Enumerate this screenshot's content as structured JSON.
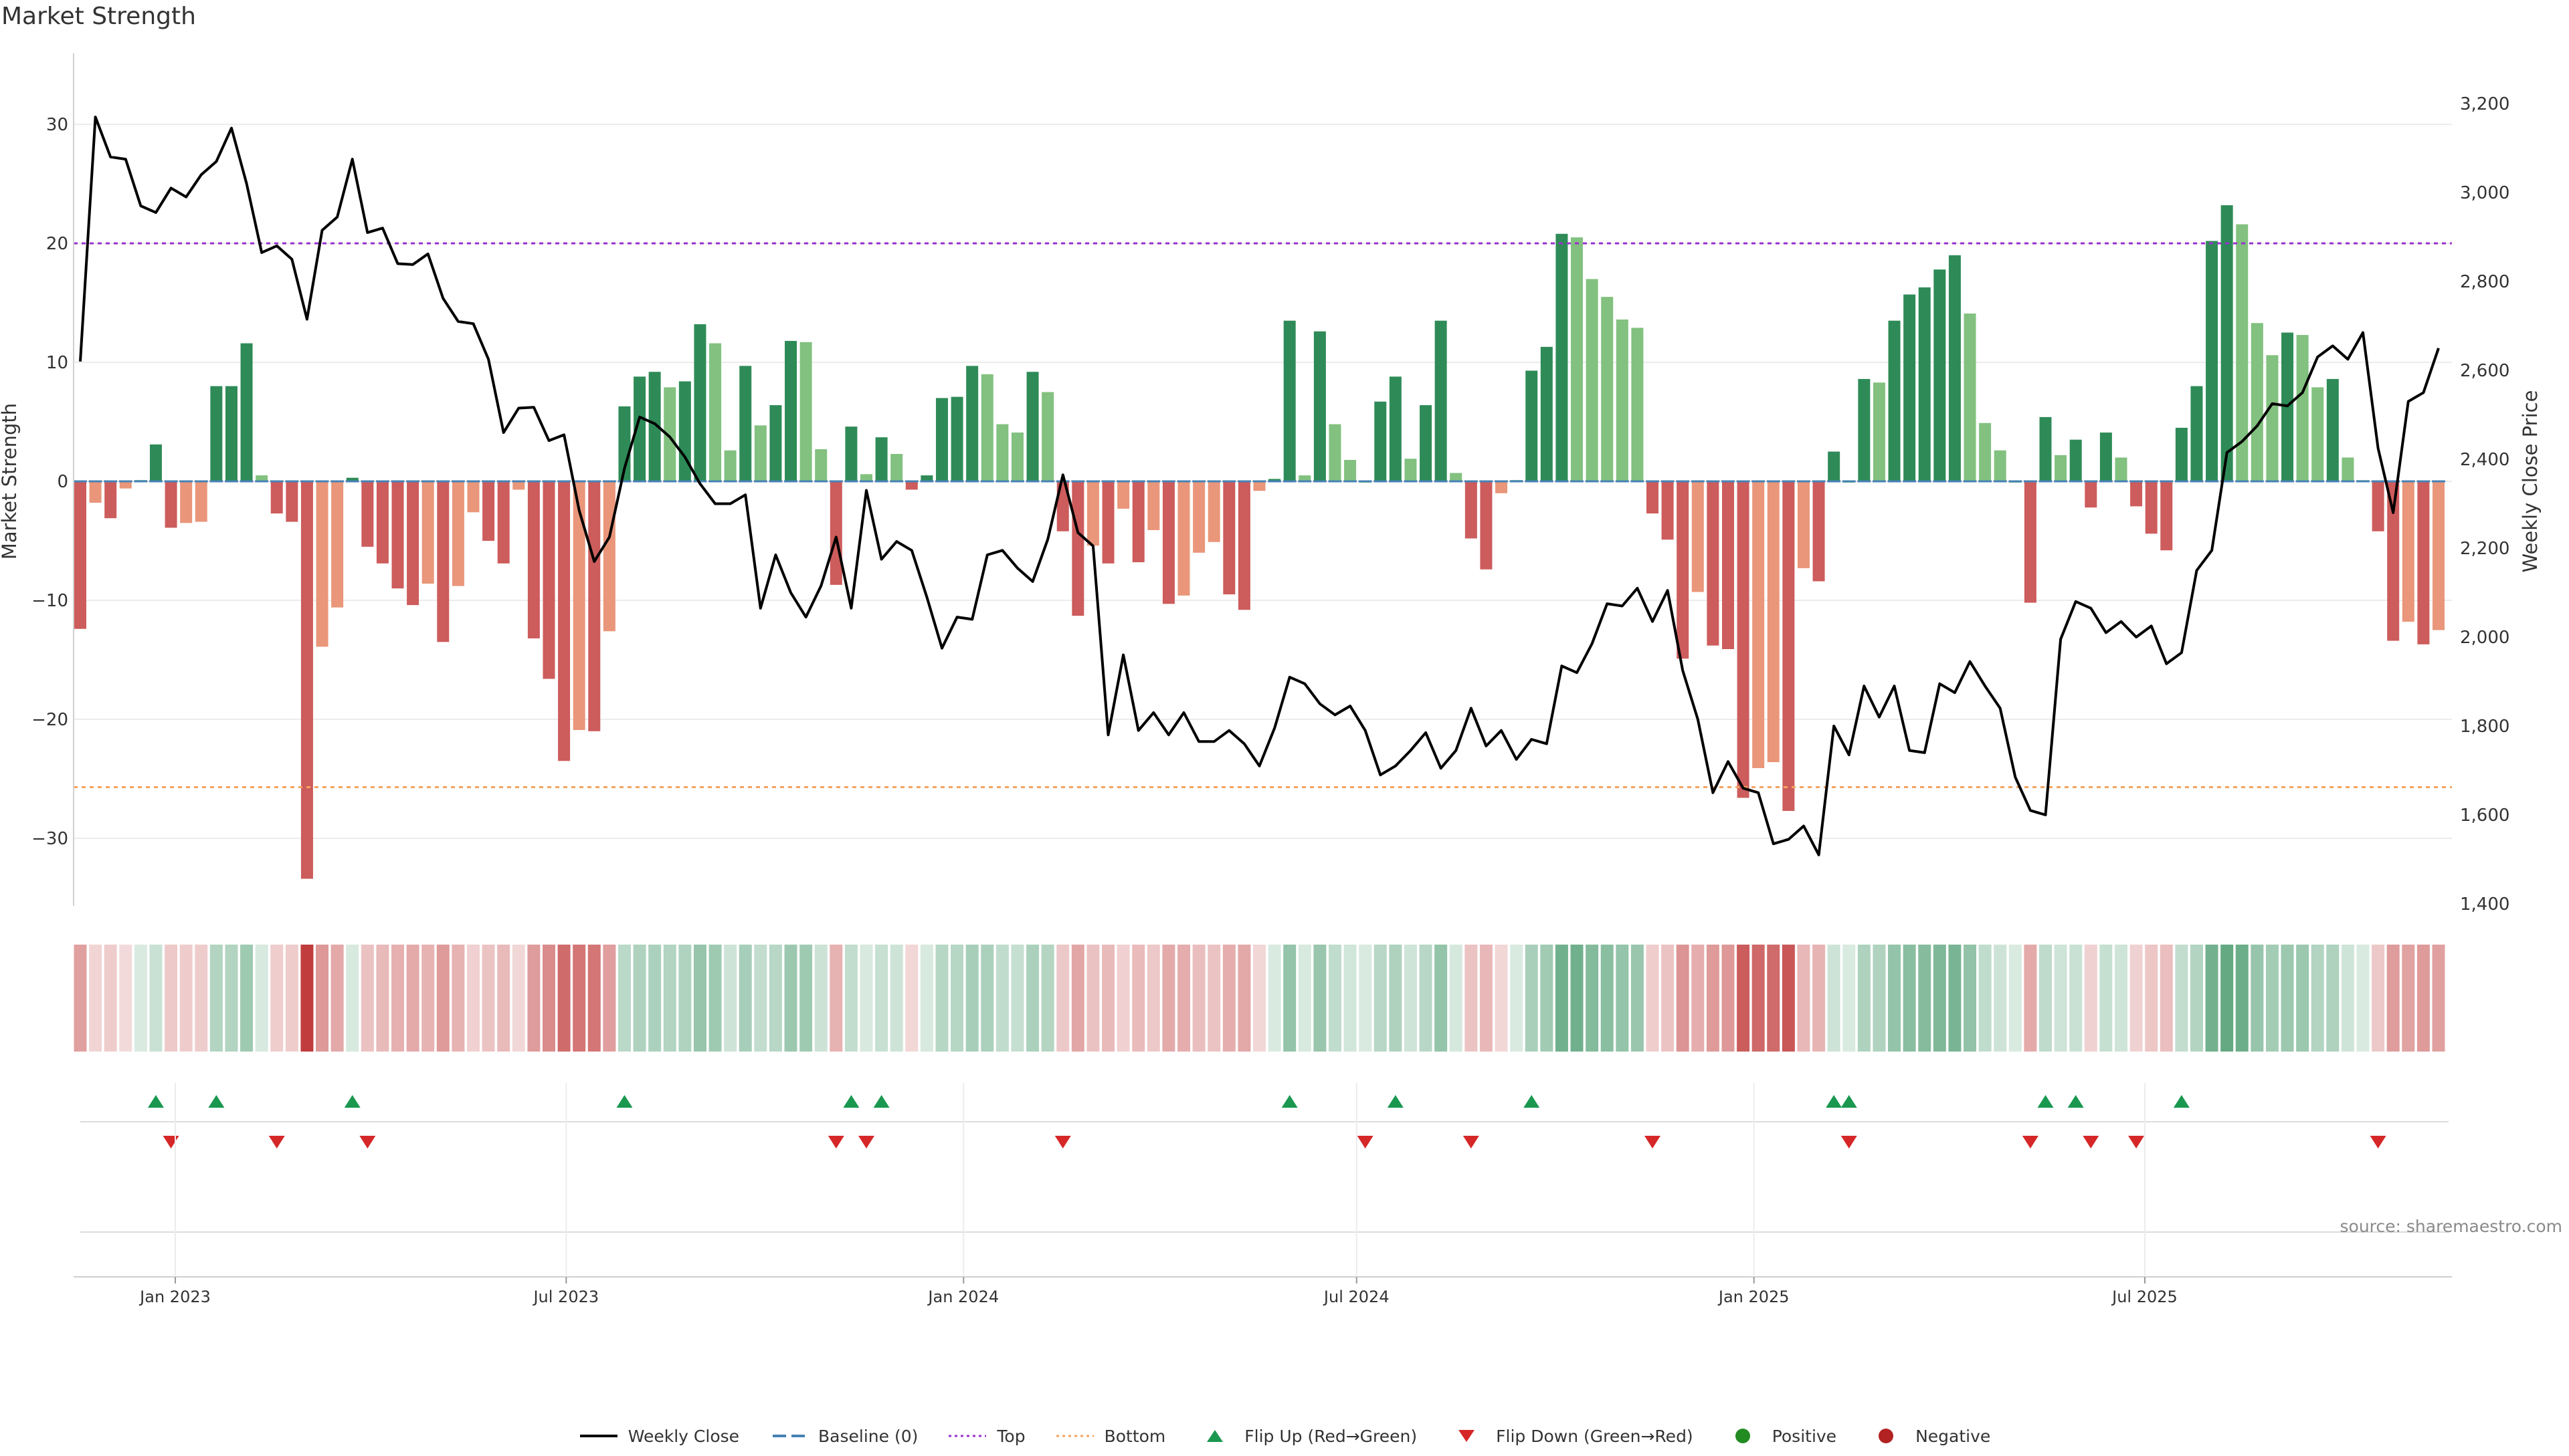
{
  "chart_data": {
    "type": "bar",
    "title": "Market Strength",
    "ylabel": "Market Strength",
    "y2label": "Weekly Close Price",
    "ylim": [
      -36,
      36
    ],
    "y2lim": [
      1400,
      3250
    ],
    "yticks": [
      30,
      20,
      10,
      0,
      -10,
      -20,
      -30
    ],
    "y2ticks": [
      3200,
      3000,
      2800,
      2600,
      2400,
      2200,
      2000,
      1800,
      1600,
      1400
    ],
    "y2tick_labels": [
      "3,200",
      "3,000",
      "2,800",
      "2,600",
      "2,400",
      "2,200",
      "2,000",
      "1,800",
      "1,600",
      "1,400"
    ],
    "x_start": "2022-11-18",
    "x_end": "2025-11-14",
    "x_ticks": [
      {
        "date": "2023-01-01",
        "label": "Jan 2023"
      },
      {
        "date": "2023-07-01",
        "label": "Jul 2023"
      },
      {
        "date": "2024-01-01",
        "label": "Jan 2024"
      },
      {
        "date": "2024-07-01",
        "label": "Jul 2024"
      },
      {
        "date": "2025-01-01",
        "label": "Jan 2025"
      },
      {
        "date": "2025-07-01",
        "label": "Jul 2025"
      }
    ],
    "top_line": 20,
    "bottom_line": -25.7,
    "grid": true,
    "legend_position": "bottom-center",
    "colors": {
      "strong_green": "#2e8b57",
      "light_green": "#82c17f",
      "strong_red": "#cd5c5c",
      "light_red": "#e9967a",
      "price_line": "#000000",
      "baseline": "#4682b4",
      "top": "#9932cc",
      "bottom": "#f4a460",
      "flip_up": "#1a9850",
      "flip_down": "#d62728",
      "positive": "#228b22",
      "negative": "#b22222"
    },
    "weeks": [
      {
        "date": "2022-11-18",
        "value": -12.4,
        "close": 2620
      },
      {
        "date": "2022-11-25",
        "value": -1.8,
        "close": 3170
      },
      {
        "date": "2022-12-02",
        "value": -3.1,
        "close": 3080
      },
      {
        "date": "2022-12-09",
        "value": -0.6,
        "close": 3075
      },
      {
        "date": "2022-12-16",
        "value": 0.1,
        "close": 2970
      },
      {
        "date": "2022-12-23",
        "value": 3.1,
        "close": 2955
      },
      {
        "date": "2022-12-30",
        "value": -3.9,
        "close": 3010
      },
      {
        "date": "2023-01-06",
        "value": -3.5,
        "close": 2990
      },
      {
        "date": "2023-01-13",
        "value": -3.4,
        "close": 3040
      },
      {
        "date": "2023-01-20",
        "value": 8.0,
        "close": 3070
      },
      {
        "date": "2023-01-27",
        "value": 8.0,
        "close": 3145
      },
      {
        "date": "2023-02-03",
        "value": 11.6,
        "close": 3020
      },
      {
        "date": "2023-02-10",
        "value": 0.5,
        "close": 2865
      },
      {
        "date": "2023-02-17",
        "value": -2.7,
        "close": 2880
      },
      {
        "date": "2023-02-24",
        "value": -3.4,
        "close": 2850
      },
      {
        "date": "2023-03-03",
        "value": -33.4,
        "close": 2715
      },
      {
        "date": "2023-03-10",
        "value": -13.9,
        "close": 2915
      },
      {
        "date": "2023-03-17",
        "value": -10.6,
        "close": 2945
      },
      {
        "date": "2023-03-24",
        "value": 0.3,
        "close": 3075
      },
      {
        "date": "2023-03-31",
        "value": -5.5,
        "close": 2910
      },
      {
        "date": "2023-04-07",
        "value": -6.9,
        "close": 2920
      },
      {
        "date": "2023-04-14",
        "value": -9.0,
        "close": 2840
      },
      {
        "date": "2023-04-21",
        "value": -10.4,
        "close": 2838
      },
      {
        "date": "2023-04-28",
        "value": -8.6,
        "close": 2862
      },
      {
        "date": "2023-05-05",
        "value": -13.5,
        "close": 2762
      },
      {
        "date": "2023-05-12",
        "value": -8.8,
        "close": 2710
      },
      {
        "date": "2023-05-19",
        "value": -2.6,
        "close": 2705
      },
      {
        "date": "2023-05-26",
        "value": -5.0,
        "close": 2625
      },
      {
        "date": "2023-06-02",
        "value": -6.9,
        "close": 2460
      },
      {
        "date": "2023-06-09",
        "value": -0.7,
        "close": 2515
      },
      {
        "date": "2023-06-16",
        "value": -13.2,
        "close": 2517
      },
      {
        "date": "2023-06-23",
        "value": -16.6,
        "close": 2442
      },
      {
        "date": "2023-06-30",
        "value": -23.5,
        "close": 2455
      },
      {
        "date": "2023-07-07",
        "value": -20.9,
        "close": 2285
      },
      {
        "date": "2023-07-14",
        "value": -21.0,
        "close": 2170
      },
      {
        "date": "2023-07-21",
        "value": -12.6,
        "close": 2225
      },
      {
        "date": "2023-07-28",
        "value": 6.3,
        "close": 2380
      },
      {
        "date": "2023-08-04",
        "value": 8.8,
        "close": 2495
      },
      {
        "date": "2023-08-11",
        "value": 9.2,
        "close": 2480
      },
      {
        "date": "2023-08-18",
        "value": 7.9,
        "close": 2450
      },
      {
        "date": "2023-08-25",
        "value": 8.4,
        "close": 2405
      },
      {
        "date": "2023-09-01",
        "value": 13.2,
        "close": 2345
      },
      {
        "date": "2023-09-08",
        "value": 11.6,
        "close": 2300
      },
      {
        "date": "2023-09-15",
        "value": 2.6,
        "close": 2300
      },
      {
        "date": "2023-09-22",
        "value": 9.7,
        "close": 2320
      },
      {
        "date": "2023-09-29",
        "value": 4.7,
        "close": 2065
      },
      {
        "date": "2023-10-06",
        "value": 6.4,
        "close": 2185
      },
      {
        "date": "2023-10-13",
        "value": 11.8,
        "close": 2100
      },
      {
        "date": "2023-10-20",
        "value": 11.7,
        "close": 2045
      },
      {
        "date": "2023-10-27",
        "value": 2.7,
        "close": 2115
      },
      {
        "date": "2023-11-03",
        "value": -8.7,
        "close": 2225
      },
      {
        "date": "2023-11-10",
        "value": 4.6,
        "close": 2065
      },
      {
        "date": "2023-11-17",
        "value": 0.6,
        "close": 2330
      },
      {
        "date": "2023-11-24",
        "value": 3.7,
        "close": 2175
      },
      {
        "date": "2023-12-01",
        "value": 2.3,
        "close": 2215
      },
      {
        "date": "2023-12-08",
        "value": -0.7,
        "close": 2195
      },
      {
        "date": "2023-12-15",
        "value": 0.5,
        "close": 2090
      },
      {
        "date": "2023-12-22",
        "value": 7.0,
        "close": 1975
      },
      {
        "date": "2023-12-29",
        "value": 7.1,
        "close": 2045
      },
      {
        "date": "2024-01-05",
        "value": 9.7,
        "close": 2040
      },
      {
        "date": "2024-01-12",
        "value": 9.0,
        "close": 2185
      },
      {
        "date": "2024-01-19",
        "value": 4.8,
        "close": 2195
      },
      {
        "date": "2024-01-26",
        "value": 4.1,
        "close": 2155
      },
      {
        "date": "2024-02-02",
        "value": 9.2,
        "close": 2125
      },
      {
        "date": "2024-02-09",
        "value": 7.5,
        "close": 2220
      },
      {
        "date": "2024-02-16",
        "value": -4.2,
        "close": 2365
      },
      {
        "date": "2024-02-23",
        "value": -11.3,
        "close": 2235
      },
      {
        "date": "2024-03-01",
        "value": -5.4,
        "close": 2205
      },
      {
        "date": "2024-03-08",
        "value": -6.9,
        "close": 1780
      },
      {
        "date": "2024-03-15",
        "value": -2.3,
        "close": 1960
      },
      {
        "date": "2024-03-22",
        "value": -6.8,
        "close": 1790
      },
      {
        "date": "2024-03-29",
        "value": -4.1,
        "close": 1830
      },
      {
        "date": "2024-04-05",
        "value": -10.3,
        "close": 1780
      },
      {
        "date": "2024-04-12",
        "value": -9.6,
        "close": 1830
      },
      {
        "date": "2024-04-19",
        "value": -6.0,
        "close": 1765
      },
      {
        "date": "2024-04-26",
        "value": -5.1,
        "close": 1765
      },
      {
        "date": "2024-05-03",
        "value": -9.5,
        "close": 1790
      },
      {
        "date": "2024-05-10",
        "value": -10.8,
        "close": 1760
      },
      {
        "date": "2024-05-17",
        "value": -0.8,
        "close": 1710
      },
      {
        "date": "2024-05-24",
        "value": 0.2,
        "close": 1795
      },
      {
        "date": "2024-05-31",
        "value": 13.5,
        "close": 1910
      },
      {
        "date": "2024-06-07",
        "value": 0.5,
        "close": 1895
      },
      {
        "date": "2024-06-14",
        "value": 12.6,
        "close": 1850
      },
      {
        "date": "2024-06-21",
        "value": 4.8,
        "close": 1825
      },
      {
        "date": "2024-06-28",
        "value": 1.8,
        "close": 1845
      },
      {
        "date": "2024-07-05",
        "value": 0.0,
        "close": 1790
      },
      {
        "date": "2024-07-12",
        "value": 6.7,
        "close": 1690
      },
      {
        "date": "2024-07-19",
        "value": 8.8,
        "close": 1710
      },
      {
        "date": "2024-07-26",
        "value": 1.9,
        "close": 1745
      },
      {
        "date": "2024-08-02",
        "value": 6.4,
        "close": 1785
      },
      {
        "date": "2024-08-09",
        "value": 13.5,
        "close": 1705
      },
      {
        "date": "2024-08-16",
        "value": 0.7,
        "close": 1745
      },
      {
        "date": "2024-08-23",
        "value": -4.8,
        "close": 1840
      },
      {
        "date": "2024-08-30",
        "value": -7.4,
        "close": 1755
      },
      {
        "date": "2024-09-06",
        "value": -1.0,
        "close": 1790
      },
      {
        "date": "2024-09-13",
        "value": 0.1,
        "close": 1725
      },
      {
        "date": "2024-09-20",
        "value": 9.3,
        "close": 1770
      },
      {
        "date": "2024-09-27",
        "value": 11.3,
        "close": 1760
      },
      {
        "date": "2024-10-04",
        "value": 20.8,
        "close": 1935
      },
      {
        "date": "2024-10-11",
        "value": 20.5,
        "close": 1920
      },
      {
        "date": "2024-10-18",
        "value": 17.0,
        "close": 1985
      },
      {
        "date": "2024-10-25",
        "value": 15.5,
        "close": 2075
      },
      {
        "date": "2024-11-01",
        "value": 13.6,
        "close": 2070
      },
      {
        "date": "2024-11-08",
        "value": 12.9,
        "close": 2110
      },
      {
        "date": "2024-11-15",
        "value": -2.7,
        "close": 2035
      },
      {
        "date": "2024-11-22",
        "value": -4.9,
        "close": 2105
      },
      {
        "date": "2024-11-29",
        "value": -14.9,
        "close": 1925
      },
      {
        "date": "2024-12-06",
        "value": -9.3,
        "close": 1815
      },
      {
        "date": "2024-12-13",
        "value": -13.8,
        "close": 1650
      },
      {
        "date": "2024-12-20",
        "value": -14.1,
        "close": 1720
      },
      {
        "date": "2024-12-27",
        "value": -26.6,
        "close": 1660
      },
      {
        "date": "2025-01-03",
        "value": -24.1,
        "close": 1650
      },
      {
        "date": "2025-01-10",
        "value": -23.6,
        "close": 1535
      },
      {
        "date": "2025-01-17",
        "value": -27.7,
        "close": 1545
      },
      {
        "date": "2025-01-24",
        "value": -7.3,
        "close": 1575
      },
      {
        "date": "2025-01-31",
        "value": -8.4,
        "close": 1510
      },
      {
        "date": "2025-02-07",
        "value": 2.5,
        "close": 1800
      },
      {
        "date": "2025-02-14",
        "value": 0.0,
        "close": 1735
      },
      {
        "date": "2025-02-21",
        "value": 8.6,
        "close": 1890
      },
      {
        "date": "2025-02-28",
        "value": 8.3,
        "close": 1820
      },
      {
        "date": "2025-03-07",
        "value": 13.5,
        "close": 1890
      },
      {
        "date": "2025-03-14",
        "value": 15.7,
        "close": 1745
      },
      {
        "date": "2025-03-21",
        "value": 16.3,
        "close": 1740
      },
      {
        "date": "2025-03-28",
        "value": 17.8,
        "close": 1895
      },
      {
        "date": "2025-04-04",
        "value": 19.0,
        "close": 1875
      },
      {
        "date": "2025-04-11",
        "value": 14.1,
        "close": 1945
      },
      {
        "date": "2025-04-18",
        "value": 4.9,
        "close": 1890
      },
      {
        "date": "2025-04-25",
        "value": 2.6,
        "close": 1840
      },
      {
        "date": "2025-05-02",
        "value": 0.0,
        "close": 1685
      },
      {
        "date": "2025-05-09",
        "value": -10.2,
        "close": 1610
      },
      {
        "date": "2025-05-16",
        "value": 5.4,
        "close": 1600
      },
      {
        "date": "2025-05-23",
        "value": 2.2,
        "close": 1995
      },
      {
        "date": "2025-05-30",
        "value": 3.5,
        "close": 2080
      },
      {
        "date": "2025-06-06",
        "value": -2.2,
        "close": 2065
      },
      {
        "date": "2025-06-13",
        "value": 4.1,
        "close": 2010
      },
      {
        "date": "2025-06-20",
        "value": 2.0,
        "close": 2035
      },
      {
        "date": "2025-06-27",
        "value": -2.1,
        "close": 2000
      },
      {
        "date": "2025-07-04",
        "value": -4.4,
        "close": 2025
      },
      {
        "date": "2025-07-11",
        "value": -5.8,
        "close": 1940
      },
      {
        "date": "2025-07-18",
        "value": 4.5,
        "close": 1965
      },
      {
        "date": "2025-07-25",
        "value": 8.0,
        "close": 2150
      },
      {
        "date": "2025-08-01",
        "value": 20.2,
        "close": 2195
      },
      {
        "date": "2025-08-08",
        "value": 23.2,
        "close": 2415
      },
      {
        "date": "2025-08-15",
        "value": 21.6,
        "close": 2440
      },
      {
        "date": "2025-08-22",
        "value": 13.3,
        "close": 2475
      },
      {
        "date": "2025-08-29",
        "value": 10.6,
        "close": 2525
      },
      {
        "date": "2025-09-05",
        "value": 12.5,
        "close": 2520
      },
      {
        "date": "2025-09-12",
        "value": 12.3,
        "close": 2550
      },
      {
        "date": "2025-09-19",
        "value": 7.9,
        "close": 2630
      },
      {
        "date": "2025-09-26",
        "value": 8.6,
        "close": 2655
      },
      {
        "date": "2025-10-03",
        "value": 2.0,
        "close": 2625
      },
      {
        "date": "2025-10-10",
        "value": 0.1,
        "close": 2685
      },
      {
        "date": "2025-10-17",
        "value": -4.2,
        "close": 2425
      },
      {
        "date": "2025-10-24",
        "value": -13.4,
        "close": 2280
      },
      {
        "date": "2025-10-31",
        "value": -11.8,
        "close": 2530
      },
      {
        "date": "2025-11-07",
        "value": -13.7,
        "close": 2550
      },
      {
        "date": "2025-11-14",
        "value": -12.5,
        "close": 2650
      }
    ],
    "flip_up_dates": [
      "2022-12-23",
      "2023-01-20",
      "2023-03-24",
      "2023-07-28",
      "2023-11-10",
      "2023-11-24",
      "2024-05-31",
      "2024-07-19",
      "2024-09-20",
      "2025-02-07",
      "2025-02-14",
      "2025-05-16",
      "2025-05-30",
      "2025-07-18"
    ],
    "flip_down_dates": [
      "2022-12-30",
      "2023-02-17",
      "2023-03-31",
      "2023-11-03",
      "2023-11-17",
      "2024-02-16",
      "2024-07-05",
      "2024-08-23",
      "2024-11-15",
      "2025-02-14",
      "2025-05-09",
      "2025-06-06",
      "2025-06-27",
      "2025-10-17"
    ]
  },
  "legend": {
    "items": [
      {
        "key": "weekly_close",
        "label": "Weekly Close"
      },
      {
        "key": "baseline",
        "label": "Baseline (0)"
      },
      {
        "key": "top",
        "label": "Top"
      },
      {
        "key": "bottom",
        "label": "Bottom"
      },
      {
        "key": "flip_up",
        "label": "Flip Up (Red→Green)"
      },
      {
        "key": "flip_down",
        "label": "Flip Down (Green→Red)"
      },
      {
        "key": "positive",
        "label": "Positive"
      },
      {
        "key": "negative",
        "label": "Negative"
      }
    ]
  },
  "source_note": "source: sharemaestro.com"
}
